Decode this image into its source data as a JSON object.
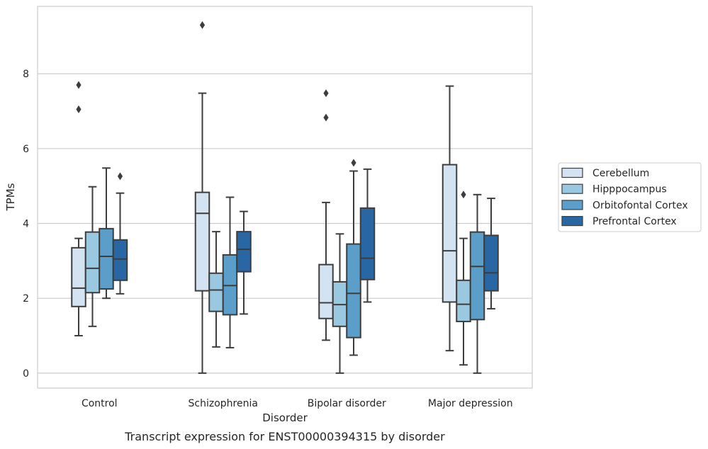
{
  "caption": "Transcript expression for ENST00000394315 by disorder",
  "chart_data": {
    "type": "box",
    "xlabel": "Disorder",
    "ylabel": "TPMs",
    "ylim": [
      -0.4,
      9.8
    ],
    "yticks": [
      0,
      2,
      4,
      6,
      8
    ],
    "grid": "horizontal",
    "legend_position": "right",
    "categories": [
      "Control",
      "Schizophrenia",
      "Bipolar disorder",
      "Major depression"
    ],
    "series": [
      {
        "name": "Cerebellum",
        "color": "#d4e3f2",
        "boxes": [
          {
            "whisker_low": 1.0,
            "q1": 1.78,
            "median": 2.27,
            "q3": 3.35,
            "whisker_high": 3.6,
            "outliers": [
              7.05,
              7.7
            ]
          },
          {
            "whisker_low": 0.0,
            "q1": 2.2,
            "median": 4.27,
            "q3": 4.83,
            "whisker_high": 7.48,
            "outliers": [
              9.3
            ]
          },
          {
            "whisker_low": 0.88,
            "q1": 1.46,
            "median": 1.88,
            "q3": 2.9,
            "whisker_high": 4.56,
            "outliers": [
              6.83,
              7.48
            ]
          },
          {
            "whisker_low": 0.6,
            "q1": 1.9,
            "median": 3.27,
            "q3": 5.57,
            "whisker_high": 7.67,
            "outliers": []
          }
        ]
      },
      {
        "name": "Hipppocampus",
        "color": "#9ac8e0",
        "boxes": [
          {
            "whisker_low": 1.25,
            "q1": 2.15,
            "median": 2.8,
            "q3": 3.77,
            "whisker_high": 4.98,
            "outliers": []
          },
          {
            "whisker_low": 0.7,
            "q1": 1.65,
            "median": 2.22,
            "q3": 2.67,
            "whisker_high": 3.78,
            "outliers": []
          },
          {
            "whisker_low": 0.0,
            "q1": 1.25,
            "median": 1.83,
            "q3": 2.44,
            "whisker_high": 3.72,
            "outliers": []
          },
          {
            "whisker_low": 0.22,
            "q1": 1.38,
            "median": 1.84,
            "q3": 2.48,
            "whisker_high": 3.6,
            "outliers": [
              4.77
            ]
          }
        ]
      },
      {
        "name": "Orbitofontal Cortex",
        "color": "#5a9ec9",
        "boxes": [
          {
            "whisker_low": 2.0,
            "q1": 2.25,
            "median": 3.12,
            "q3": 3.86,
            "whisker_high": 5.48,
            "outliers": []
          },
          {
            "whisker_low": 0.68,
            "q1": 1.56,
            "median": 2.34,
            "q3": 3.16,
            "whisker_high": 4.7,
            "outliers": []
          },
          {
            "whisker_low": 0.48,
            "q1": 0.95,
            "median": 2.13,
            "q3": 3.45,
            "whisker_high": 5.4,
            "outliers": [
              5.62
            ]
          },
          {
            "whisker_low": 0.0,
            "q1": 1.43,
            "median": 2.85,
            "q3": 3.77,
            "whisker_high": 4.77,
            "outliers": []
          }
        ]
      },
      {
        "name": "Prefrontal Cortex",
        "color": "#2866a4",
        "boxes": [
          {
            "whisker_low": 2.12,
            "q1": 2.48,
            "median": 3.05,
            "q3": 3.56,
            "whisker_high": 4.81,
            "outliers": [
              5.26
            ]
          },
          {
            "whisker_low": 1.58,
            "q1": 2.71,
            "median": 3.31,
            "q3": 3.78,
            "whisker_high": 4.32,
            "outliers": []
          },
          {
            "whisker_low": 1.9,
            "q1": 2.5,
            "median": 3.07,
            "q3": 4.41,
            "whisker_high": 5.45,
            "outliers": []
          },
          {
            "whisker_low": 1.72,
            "q1": 2.2,
            "median": 2.68,
            "q3": 3.68,
            "whisker_high": 4.67,
            "outliers": []
          }
        ]
      }
    ]
  }
}
